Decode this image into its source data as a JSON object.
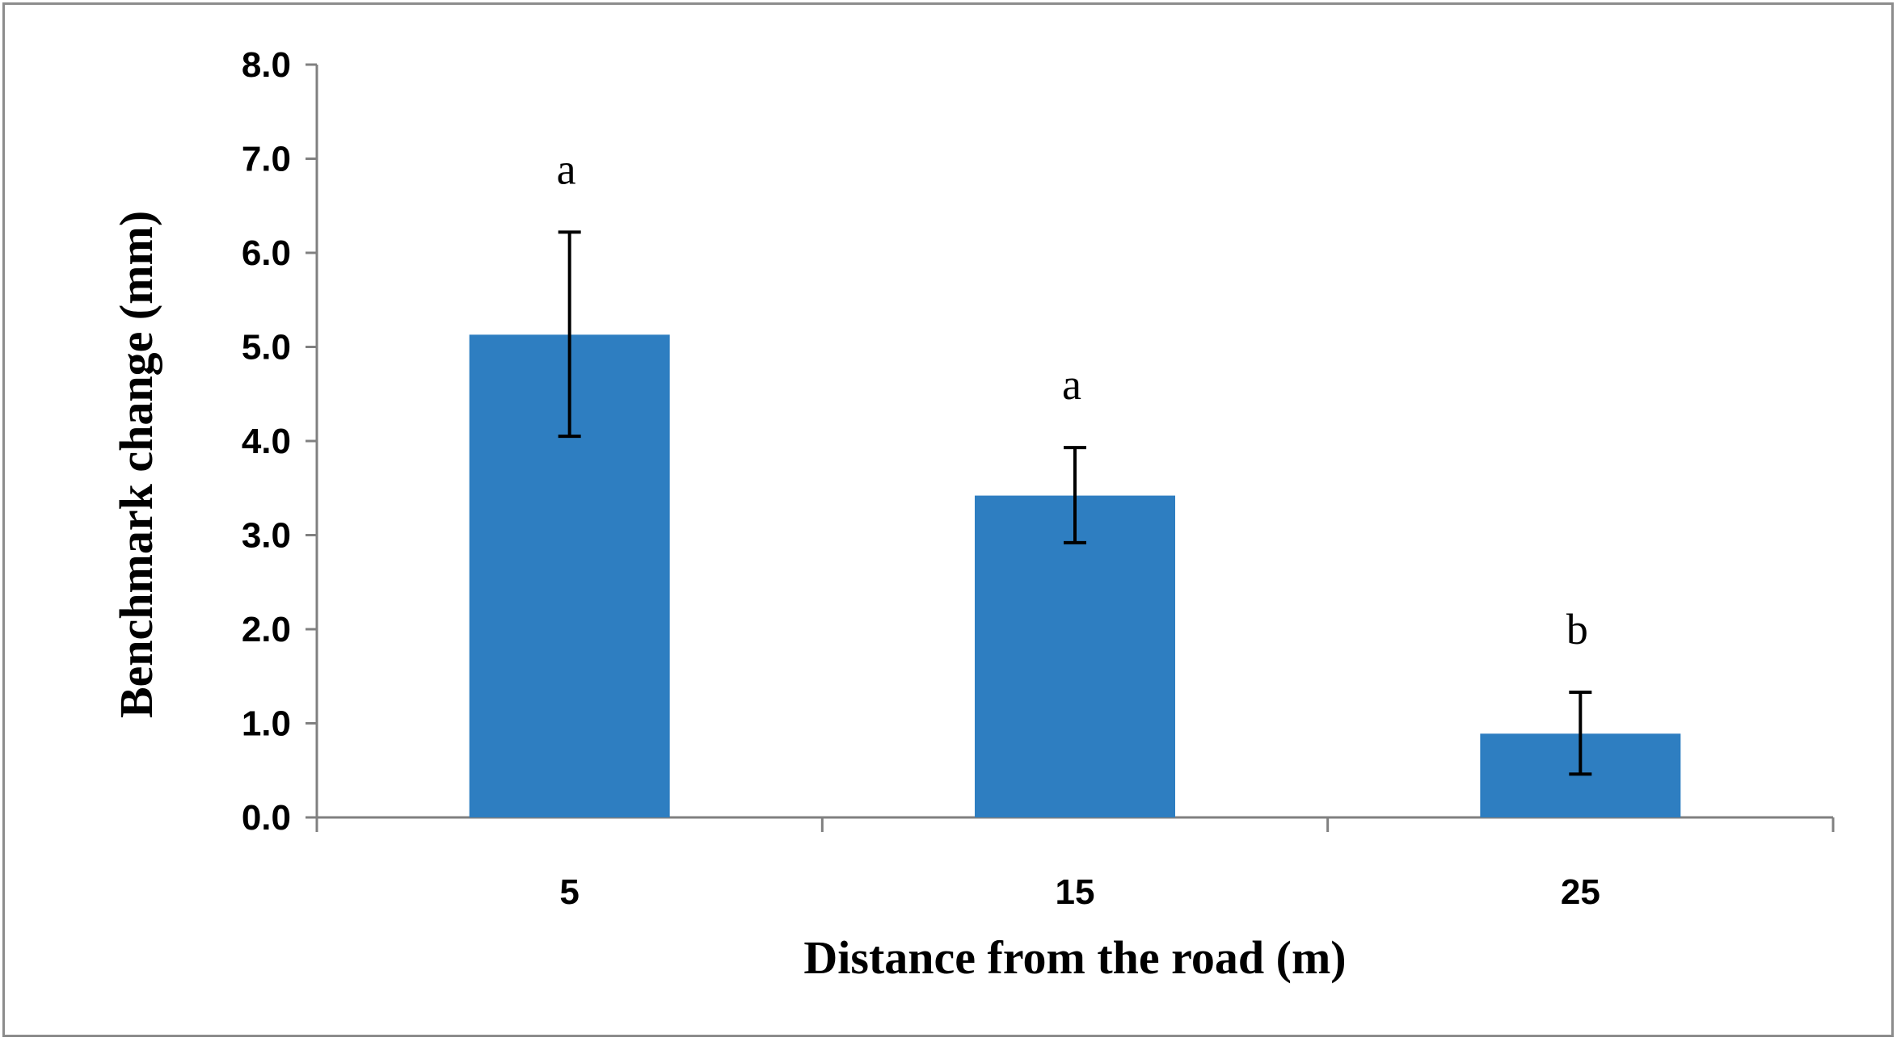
{
  "chart_data": {
    "type": "bar",
    "title": "",
    "xlabel": "Distance from the road (m)",
    "ylabel": "Benchmark change (mm)",
    "categories": [
      "5",
      "15",
      "25"
    ],
    "values": [
      5.13,
      3.42,
      0.89
    ],
    "error_low": [
      4.05,
      2.92,
      0.46
    ],
    "error_high": [
      6.22,
      3.93,
      1.33
    ],
    "annotations": [
      "a",
      "a",
      "b"
    ],
    "ylim": [
      0,
      8
    ],
    "yticks": [
      "0.0",
      "1.0",
      "2.0",
      "3.0",
      "4.0",
      "5.0",
      "6.0",
      "7.0",
      "8.0"
    ],
    "grid": false,
    "legend": "none",
    "bar_color": "#2e7ec1",
    "axis_color": "#808080"
  }
}
